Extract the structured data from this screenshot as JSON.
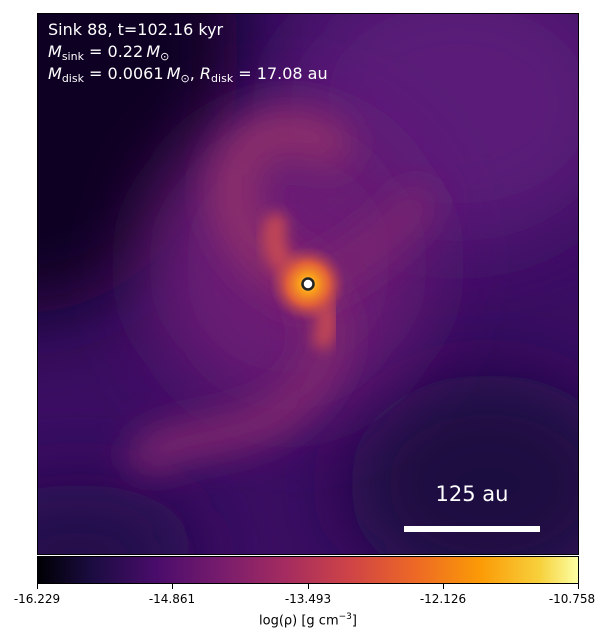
{
  "annotation": {
    "sink_line": "Sink 88, t=102.16 kyr",
    "sink_mass_label": "sink",
    "sink_mass_value": " = 0.22",
    "sink_mass_unit": "M",
    "sun_symbol": "⊙",
    "disk_mass_label": "disk",
    "disk_mass_value": " = 0.0061",
    "disk_radius_label": "disk",
    "disk_radius_value": " = 17.08 au"
  },
  "scale_bar": {
    "label": "125 au"
  },
  "colorbar": {
    "ticks": [
      "-16.229",
      "-14.861",
      "-13.493",
      "-12.126",
      "-10.758"
    ],
    "title_prefix": "log(ρ) [g cm",
    "title_exponent": "−3",
    "title_suffix": "]",
    "colormap": "inferno"
  },
  "colors": {
    "background_dark": "#1b0c41",
    "field_purple": "#4a1670",
    "arm_magenta": "#8a2d6e",
    "core_orange": "#f79a1e",
    "sink_marker": "#ffffff"
  }
}
